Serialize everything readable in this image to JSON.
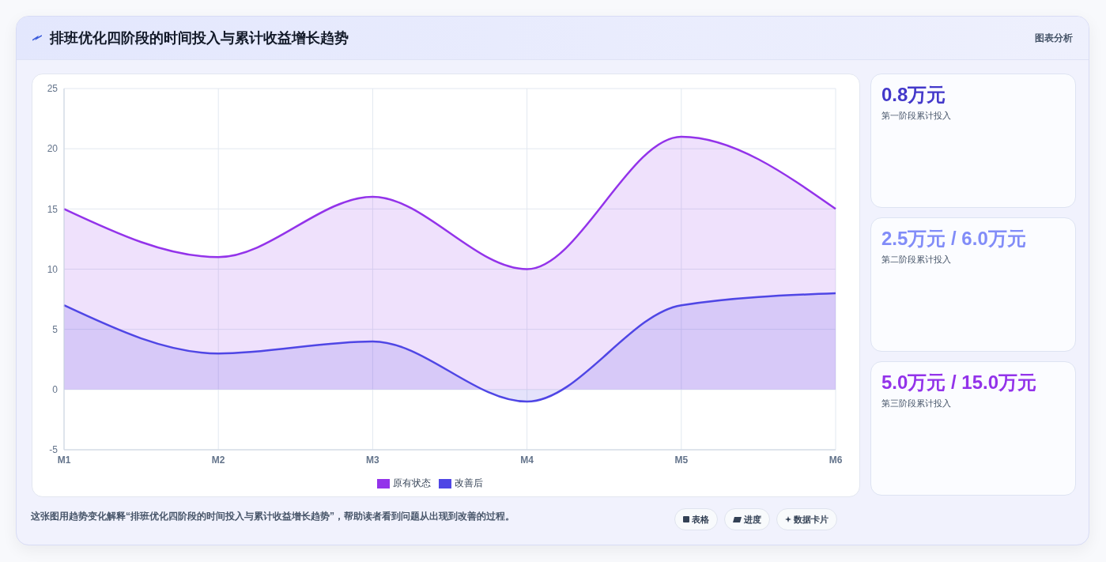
{
  "chart_data": {
    "type": "area",
    "title": "排班优化四阶段的时间投入与累计收益增长趋势",
    "categories": [
      "M1",
      "M2",
      "M3",
      "M4",
      "M5",
      "M6"
    ],
    "series": [
      {
        "name": "原有状态",
        "color": "#9333ea",
        "values": [
          15,
          11,
          16,
          10,
          21,
          15
        ]
      },
      {
        "name": "改善后",
        "color": "#4f46e5",
        "values": [
          7,
          3,
          4,
          -1,
          7,
          8
        ]
      }
    ],
    "ylim": [
      -5,
      25
    ],
    "yticks": [
      -5,
      0,
      5,
      10,
      15,
      20,
      25
    ],
    "grid": true,
    "legend": "bottom",
    "marker": "none",
    "annotations": [
      "图表分析",
      "0.8万元",
      "第一阶段累计投入",
      "2.5万元 / 6.0万元",
      "第二阶段累计投入",
      "5.0万元 / 15.0万元",
      "第三阶段累计投入",
      "这张图用趋势变化解释“排班优化四阶段的时间投入与累计收益增长趋势”，帮助读者看到问题从出现到改善的过程。",
      "表格",
      "进度",
      "数据卡片"
    ]
  }
}
